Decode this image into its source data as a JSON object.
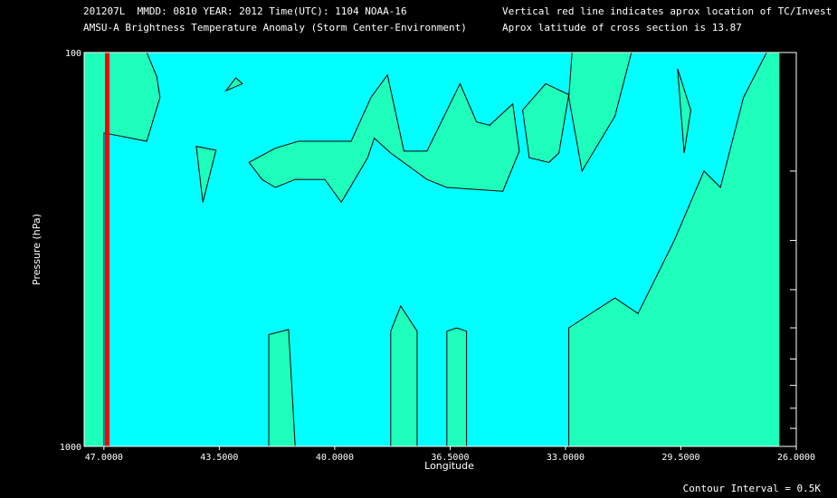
{
  "header": {
    "line1": "201207L  MMDD: 0810 YEAR: 2012 Time(UTC): 1104 NOAA-16",
    "line2": "AMSU-A Brightness Temperature Anomaly (Storm Center-Environment)",
    "line3": "Vertical red line indicates aprox location of TC/Invest",
    "line4": "Aprox latitude of cross section is 13.87"
  },
  "footer": {
    "contour_interval": "Contour Interval = 0.5K"
  },
  "colors": {
    "background": "#00ffff",
    "anomaly_fill": "#1dffbb",
    "contour_line": "#000000",
    "storm_line": "#ff0000",
    "axis": "#ffffff"
  },
  "chart_data": {
    "type": "contour",
    "xlabel": "Longitude",
    "ylabel": "Pressure (hPa)",
    "x_reversed": true,
    "xlim": [
      47.6,
      26.0
    ],
    "ylim": [
      1000,
      100
    ],
    "y_scale": "log",
    "x_ticks": [
      47.0,
      43.5,
      40.0,
      36.5,
      33.0,
      29.5,
      26.0
    ],
    "x_tick_labels": [
      "47.0000",
      "43.5000",
      "40.0000",
      "36.5000",
      "33.0000",
      "29.5000",
      "26.0000"
    ],
    "y_tick_labels": [
      "100",
      "1000"
    ],
    "y_minor_ticks": [
      200,
      300,
      400,
      500,
      600,
      700,
      800,
      900
    ],
    "storm_longitude": 46.9,
    "contour_interval": 0.5,
    "anomaly_regions": [
      {
        "name": "west-edge",
        "points": [
          [
            47.6,
            1000
          ],
          [
            47.0,
            1000
          ],
          [
            47.0,
            160
          ],
          [
            45.7,
            168
          ],
          [
            45.3,
            130
          ],
          [
            45.4,
            115
          ],
          [
            45.7,
            100
          ],
          [
            47.6,
            100
          ],
          [
            47.6,
            400
          ]
        ]
      },
      {
        "name": "upper-small-1",
        "points": [
          [
            43.3,
            125
          ],
          [
            42.8,
            120
          ],
          [
            43.0,
            116
          ],
          [
            43.3,
            125
          ]
        ]
      },
      {
        "name": "upper-small-2",
        "points": [
          [
            44.2,
            173
          ],
          [
            43.6,
            177
          ],
          [
            44.0,
            240
          ],
          [
            44.2,
            173
          ]
        ]
      },
      {
        "name": "upper-band",
        "points": [
          [
            41.8,
            175
          ],
          [
            41.1,
            168
          ],
          [
            39.5,
            168
          ],
          [
            38.9,
            130
          ],
          [
            38.4,
            114
          ],
          [
            37.9,
            178
          ],
          [
            37.2,
            178
          ],
          [
            36.2,
            120
          ],
          [
            35.7,
            150
          ],
          [
            35.3,
            153
          ],
          [
            34.6,
            135
          ],
          [
            34.4,
            178
          ],
          [
            34.9,
            225
          ],
          [
            36.6,
            220
          ],
          [
            37.2,
            210
          ],
          [
            38.3,
            180
          ],
          [
            38.8,
            165
          ],
          [
            39.0,
            185
          ],
          [
            39.8,
            240
          ],
          [
            40.3,
            210
          ],
          [
            41.2,
            210
          ],
          [
            41.8,
            220
          ],
          [
            42.2,
            210
          ],
          [
            42.6,
            190
          ],
          [
            41.8,
            175
          ]
        ]
      },
      {
        "name": "upper-right-1",
        "points": [
          [
            33.6,
            120
          ],
          [
            32.9,
            128
          ],
          [
            33.2,
            180
          ],
          [
            33.5,
            190
          ],
          [
            34.1,
            185
          ],
          [
            34.3,
            140
          ],
          [
            33.6,
            120
          ]
        ]
      },
      {
        "name": "upper-right-2",
        "points": [
          [
            31.0,
            100
          ],
          [
            31.5,
            145
          ],
          [
            32.5,
            200
          ],
          [
            32.9,
            130
          ],
          [
            32.8,
            100
          ],
          [
            31.0,
            100
          ]
        ]
      },
      {
        "name": "upper-right-3",
        "points": [
          [
            29.6,
            110
          ],
          [
            29.2,
            140
          ],
          [
            29.4,
            180
          ],
          [
            29.6,
            110
          ]
        ]
      },
      {
        "name": "east-column",
        "points": [
          [
            26.5,
            100
          ],
          [
            26.5,
            1000
          ],
          [
            32.9,
            1000
          ],
          [
            32.9,
            500
          ],
          [
            31.5,
            420
          ],
          [
            30.8,
            460
          ],
          [
            29.7,
            300
          ],
          [
            28.8,
            200
          ],
          [
            28.3,
            220
          ],
          [
            27.6,
            130
          ],
          [
            26.9,
            100
          ],
          [
            26.5,
            100
          ]
        ]
      },
      {
        "name": "lower-col-1",
        "points": [
          [
            42.0,
            1000
          ],
          [
            42.0,
            520
          ],
          [
            41.4,
            505
          ],
          [
            41.2,
            1000
          ]
        ]
      },
      {
        "name": "lower-col-2",
        "points": [
          [
            38.3,
            1000
          ],
          [
            38.3,
            510
          ],
          [
            38.0,
            440
          ],
          [
            37.5,
            510
          ],
          [
            37.5,
            1000
          ]
        ]
      },
      {
        "name": "lower-col-3",
        "points": [
          [
            36.6,
            1000
          ],
          [
            36.6,
            510
          ],
          [
            36.3,
            500
          ],
          [
            36.0,
            510
          ],
          [
            36.0,
            1000
          ]
        ]
      }
    ]
  }
}
